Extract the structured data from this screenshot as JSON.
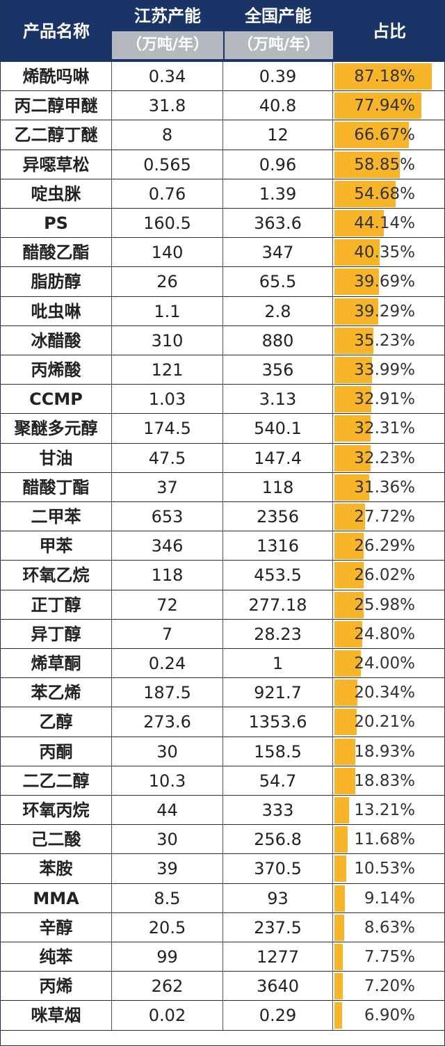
{
  "header": {
    "col_name": "产品名称",
    "col_jiangsu": "江苏产能",
    "col_jiangsu_unit": "（万吨/年）",
    "col_national": "全国产能",
    "col_national_unit": "（万吨/年）",
    "col_share": "占比"
  },
  "colors": {
    "header_bg": "#1a3468",
    "bar": "#f8b52a",
    "subheader_bg": "#b5b8bf"
  },
  "chart_data": {
    "type": "table",
    "columns": [
      "产品名称",
      "江苏产能（万吨/年）",
      "全国产能（万吨/年）",
      "占比"
    ],
    "rows": [
      {
        "name": "烯酰吗啉",
        "jiangsu": "0.34",
        "national": "0.39",
        "share_label": "87.18%",
        "share": 87.18
      },
      {
        "name": "丙二醇甲醚",
        "jiangsu": "31.8",
        "national": "40.8",
        "share_label": "77.94%",
        "share": 77.94
      },
      {
        "name": "乙二醇丁醚",
        "jiangsu": "8",
        "national": "12",
        "share_label": "66.67%",
        "share": 66.67
      },
      {
        "name": "异噁草松",
        "jiangsu": "0.565",
        "national": "0.96",
        "share_label": "58.85%",
        "share": 58.85
      },
      {
        "name": "啶虫脒",
        "jiangsu": "0.76",
        "national": "1.39",
        "share_label": "54.68%",
        "share": 54.68
      },
      {
        "name": "PS",
        "jiangsu": "160.5",
        "national": "363.6",
        "share_label": "44.14%",
        "share": 44.14
      },
      {
        "name": "醋酸乙酯",
        "jiangsu": "140",
        "national": "347",
        "share_label": "40.35%",
        "share": 40.35
      },
      {
        "name": "脂肪醇",
        "jiangsu": "26",
        "national": "65.5",
        "share_label": "39.69%",
        "share": 39.69
      },
      {
        "name": "吡虫啉",
        "jiangsu": "1.1",
        "national": "2.8",
        "share_label": "39.29%",
        "share": 39.29
      },
      {
        "name": "冰醋酸",
        "jiangsu": "310",
        "national": "880",
        "share_label": "35.23%",
        "share": 35.23
      },
      {
        "name": "丙烯酸",
        "jiangsu": "121",
        "national": "356",
        "share_label": "33.99%",
        "share": 33.99
      },
      {
        "name": "CCMP",
        "jiangsu": "1.03",
        "national": "3.13",
        "share_label": "32.91%",
        "share": 32.91
      },
      {
        "name": "聚醚多元醇",
        "jiangsu": "174.5",
        "national": "540.1",
        "share_label": "32.31%",
        "share": 32.31
      },
      {
        "name": "甘油",
        "jiangsu": "47.5",
        "national": "147.4",
        "share_label": "32.23%",
        "share": 32.23
      },
      {
        "name": "醋酸丁酯",
        "jiangsu": "37",
        "national": "118",
        "share_label": "31.36%",
        "share": 31.36
      },
      {
        "name": "二甲苯",
        "jiangsu": "653",
        "national": "2356",
        "share_label": "27.72%",
        "share": 27.72
      },
      {
        "name": "甲苯",
        "jiangsu": "346",
        "national": "1316",
        "share_label": "26.29%",
        "share": 26.29
      },
      {
        "name": "环氧乙烷",
        "jiangsu": "118",
        "national": "453.5",
        "share_label": "26.02%",
        "share": 26.02
      },
      {
        "name": "正丁醇",
        "jiangsu": "72",
        "national": "277.18",
        "share_label": "25.98%",
        "share": 25.98
      },
      {
        "name": "异丁醇",
        "jiangsu": "7",
        "national": "28.23",
        "share_label": "24.80%",
        "share": 24.8
      },
      {
        "name": "烯草酮",
        "jiangsu": "0.24",
        "national": "1",
        "share_label": "24.00%",
        "share": 24.0
      },
      {
        "name": "苯乙烯",
        "jiangsu": "187.5",
        "national": "921.7",
        "share_label": "20.34%",
        "share": 20.34
      },
      {
        "name": "乙醇",
        "jiangsu": "273.6",
        "national": "1353.6",
        "share_label": "20.21%",
        "share": 20.21
      },
      {
        "name": "丙酮",
        "jiangsu": "30",
        "national": "158.5",
        "share_label": "18.93%",
        "share": 18.93
      },
      {
        "name": "二乙二醇",
        "jiangsu": "10.3",
        "national": "54.7",
        "share_label": "18.83%",
        "share": 18.83
      },
      {
        "name": "环氧丙烷",
        "jiangsu": "44",
        "national": "333",
        "share_label": "13.21%",
        "share": 13.21
      },
      {
        "name": "己二酸",
        "jiangsu": "30",
        "national": "256.8",
        "share_label": "11.68%",
        "share": 11.68
      },
      {
        "name": "苯胺",
        "jiangsu": "39",
        "national": "370.5",
        "share_label": "10.53%",
        "share": 10.53
      },
      {
        "name": "MMA",
        "jiangsu": "8.5",
        "national": "93",
        "share_label": "9.14%",
        "share": 9.14
      },
      {
        "name": "辛醇",
        "jiangsu": "20.5",
        "national": "237.5",
        "share_label": "8.63%",
        "share": 8.63
      },
      {
        "name": "纯苯",
        "jiangsu": "99",
        "national": "1277",
        "share_label": "7.75%",
        "share": 7.75
      },
      {
        "name": "丙烯",
        "jiangsu": "262",
        "national": "3640",
        "share_label": "7.20%",
        "share": 7.2
      },
      {
        "name": "咪草烟",
        "jiangsu": "0.02",
        "national": "0.29",
        "share_label": "6.90%",
        "share": 6.9
      }
    ]
  }
}
